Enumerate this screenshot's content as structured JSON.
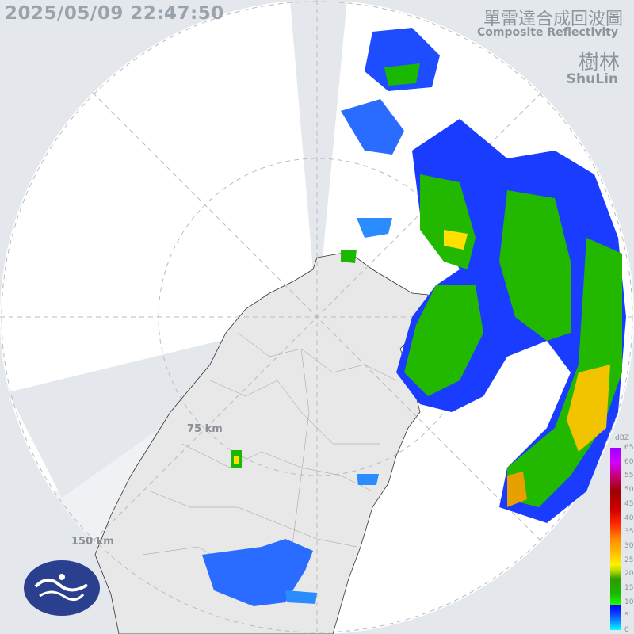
{
  "timestamp": "2025/05/09 22:47:50",
  "title": {
    "zh": "單雷達合成回波圖",
    "en": "Composite Reflectivity"
  },
  "site": {
    "zh": "樹林",
    "en": "ShuLin"
  },
  "range_rings": [
    "75 km",
    "150 km"
  ],
  "legend": {
    "unit": "dBZ",
    "ticks": [
      "65",
      "60",
      "55",
      "50",
      "45",
      "40",
      "35",
      "30",
      "25",
      "20",
      "15",
      "10",
      "5",
      "0"
    ]
  },
  "colors": {
    "background": "#e4e8ed",
    "coverage": "#ffffff",
    "land": "#e8e8e8",
    "logo": "#2b3f8f"
  },
  "logo": "CWA wave logo"
}
